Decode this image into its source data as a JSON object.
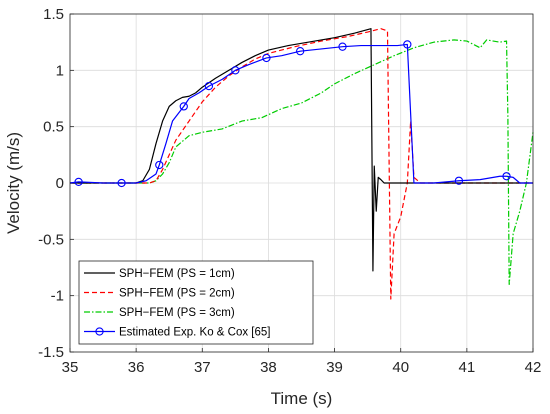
{
  "chart_data": {
    "type": "line",
    "xlabel": "Time (s)",
    "ylabel": "Velocity (m/s)",
    "xlim": [
      35,
      42
    ],
    "ylim": [
      -1.5,
      1.5
    ],
    "xticks": [
      35,
      36,
      37,
      38,
      39,
      40,
      41,
      42
    ],
    "xtick_labels": [
      "35",
      "36",
      "37",
      "38",
      "39",
      "40",
      "41",
      "42"
    ],
    "yticks": [
      -1.5,
      -1,
      -0.5,
      0,
      0.5,
      1,
      1.5
    ],
    "ytick_labels": [
      "-1.5",
      "-1",
      "-0.5",
      "0",
      "0.5",
      "1",
      "1.5"
    ],
    "grid": true,
    "legend_position": "bottom-left",
    "series": [
      {
        "name": "SPH−FEM (PS = 1cm)",
        "color": "#000000",
        "style": "solid",
        "points": [
          [
            35,
            0
          ],
          [
            35.5,
            0
          ],
          [
            36,
            0
          ],
          [
            36.1,
            0.02
          ],
          [
            36.2,
            0.12
          ],
          [
            36.3,
            0.35
          ],
          [
            36.4,
            0.55
          ],
          [
            36.5,
            0.68
          ],
          [
            36.6,
            0.73
          ],
          [
            36.7,
            0.76
          ],
          [
            36.8,
            0.77
          ],
          [
            36.9,
            0.8
          ],
          [
            37.0,
            0.85
          ],
          [
            37.2,
            0.93
          ],
          [
            37.4,
            1.0
          ],
          [
            37.6,
            1.07
          ],
          [
            37.8,
            1.13
          ],
          [
            38.0,
            1.18
          ],
          [
            38.3,
            1.22
          ],
          [
            38.6,
            1.25
          ],
          [
            39.0,
            1.29
          ],
          [
            39.3,
            1.33
          ],
          [
            39.55,
            1.37
          ],
          [
            39.58,
            -0.78
          ],
          [
            39.6,
            0.15
          ],
          [
            39.63,
            -0.25
          ],
          [
            39.66,
            0.05
          ],
          [
            39.7,
            0.03
          ],
          [
            39.75,
            0.0
          ],
          [
            40,
            0.0
          ],
          [
            42,
            0.0
          ]
        ]
      },
      {
        "name": "SPH−FEM (PS = 2cm)",
        "color": "#ff0000",
        "style": "dashed",
        "points": [
          [
            35,
            0
          ],
          [
            36.2,
            0
          ],
          [
            36.3,
            0.02
          ],
          [
            36.4,
            0.12
          ],
          [
            36.5,
            0.25
          ],
          [
            36.6,
            0.38
          ],
          [
            36.8,
            0.55
          ],
          [
            37.0,
            0.72
          ],
          [
            37.2,
            0.85
          ],
          [
            37.4,
            0.95
          ],
          [
            37.6,
            1.03
          ],
          [
            37.8,
            1.1
          ],
          [
            38.0,
            1.15
          ],
          [
            38.4,
            1.21
          ],
          [
            38.8,
            1.26
          ],
          [
            39.2,
            1.3
          ],
          [
            39.5,
            1.34
          ],
          [
            39.7,
            1.37
          ],
          [
            39.8,
            1.35
          ],
          [
            39.85,
            -1.03
          ],
          [
            39.9,
            -0.45
          ],
          [
            40.0,
            -0.3
          ],
          [
            40.1,
            0.0
          ],
          [
            40.15,
            0.55
          ],
          [
            40.2,
            0.05
          ],
          [
            40.3,
            0.0
          ],
          [
            42,
            0.0
          ]
        ]
      },
      {
        "name": "SPH−FEM (PS = 3cm)",
        "color": "#00cc00",
        "style": "dashdot",
        "points": [
          [
            35,
            0
          ],
          [
            36.2,
            0
          ],
          [
            36.3,
            0.02
          ],
          [
            36.4,
            0.08
          ],
          [
            36.5,
            0.18
          ],
          [
            36.6,
            0.32
          ],
          [
            36.8,
            0.42
          ],
          [
            37.0,
            0.45
          ],
          [
            37.3,
            0.48
          ],
          [
            37.6,
            0.55
          ],
          [
            37.9,
            0.58
          ],
          [
            38.2,
            0.66
          ],
          [
            38.5,
            0.71
          ],
          [
            38.8,
            0.8
          ],
          [
            39.0,
            0.88
          ],
          [
            39.3,
            0.97
          ],
          [
            39.6,
            1.05
          ],
          [
            39.9,
            1.13
          ],
          [
            40.2,
            1.2
          ],
          [
            40.5,
            1.25
          ],
          [
            40.8,
            1.27
          ],
          [
            41.0,
            1.26
          ],
          [
            41.2,
            1.2
          ],
          [
            41.3,
            1.27
          ],
          [
            41.5,
            1.25
          ],
          [
            41.6,
            1.26
          ],
          [
            41.62,
            0.6
          ],
          [
            41.64,
            -0.9
          ],
          [
            41.7,
            -0.45
          ],
          [
            41.8,
            -0.25
          ],
          [
            41.9,
            0.0
          ],
          [
            42,
            0.45
          ]
        ]
      },
      {
        "name": "Estimated Exp. Ko & Cox [65]",
        "color": "#0000ff",
        "style": "solid",
        "marker": "circle",
        "points": [
          [
            35,
            0
          ],
          [
            35.13,
            0.01
          ],
          [
            35.5,
            0.0
          ],
          [
            35.78,
            0.0
          ],
          [
            36.0,
            0.0
          ],
          [
            36.15,
            0.02
          ],
          [
            36.3,
            0.08
          ],
          [
            36.35,
            0.16
          ],
          [
            36.45,
            0.35
          ],
          [
            36.55,
            0.55
          ],
          [
            36.72,
            0.68
          ],
          [
            36.8,
            0.75
          ],
          [
            36.95,
            0.8
          ],
          [
            37.1,
            0.86
          ],
          [
            37.3,
            0.92
          ],
          [
            37.5,
            1.0
          ],
          [
            37.7,
            1.05
          ],
          [
            37.97,
            1.11
          ],
          [
            38.2,
            1.13
          ],
          [
            38.48,
            1.17
          ],
          [
            38.8,
            1.19
          ],
          [
            39.12,
            1.21
          ],
          [
            39.4,
            1.22
          ],
          [
            39.7,
            1.22
          ],
          [
            39.95,
            1.22
          ],
          [
            40.1,
            1.23
          ],
          [
            40.2,
            0.0
          ],
          [
            40.5,
            0.0
          ],
          [
            40.88,
            0.02
          ],
          [
            41.2,
            0.03
          ],
          [
            41.5,
            0.06
          ],
          [
            41.6,
            0.06
          ],
          [
            41.7,
            0.05
          ],
          [
            41.8,
            0.0
          ],
          [
            42,
            0.0
          ]
        ],
        "marker_points": [
          [
            35.13,
            0.01
          ],
          [
            35.78,
            0.0
          ],
          [
            36.35,
            0.16
          ],
          [
            36.72,
            0.68
          ],
          [
            37.1,
            0.86
          ],
          [
            37.5,
            1.0
          ],
          [
            37.97,
            1.11
          ],
          [
            38.48,
            1.17
          ],
          [
            39.12,
            1.21
          ],
          [
            40.1,
            1.23
          ],
          [
            40.88,
            0.02
          ],
          [
            41.6,
            0.06
          ]
        ]
      }
    ]
  }
}
